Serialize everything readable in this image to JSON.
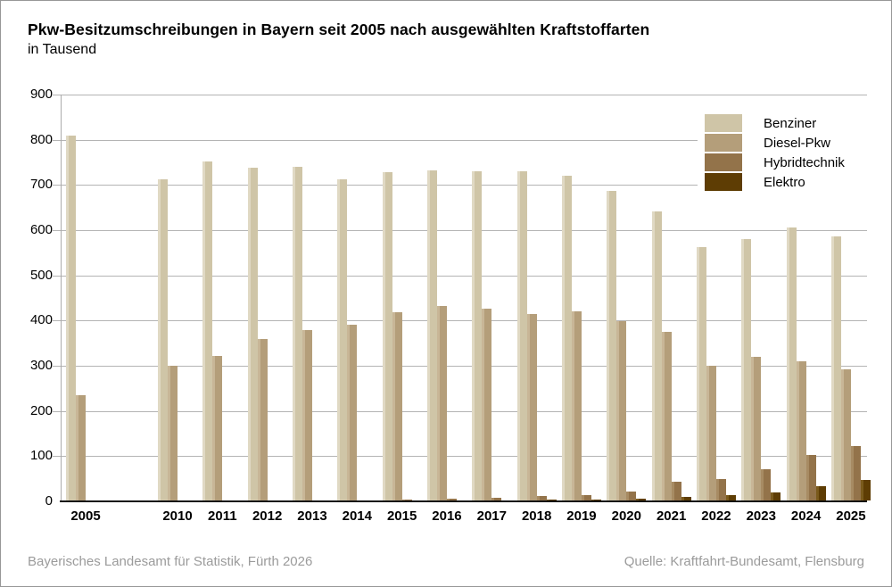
{
  "header": {
    "title": "Pkw-Besitzumschreibungen in Bayern seit 2005 nach ausgewählten Kraftstoffarten",
    "subtitle": "in Tausend"
  },
  "footer": {
    "left": "Bayerisches Landesamt für Statistik, Fürth 2026",
    "right": "Quelle: Kraftfahrt-Bundesamt, Flensburg"
  },
  "colors": {
    "benziner": "#cfc5a7",
    "benziner_highlight": "#e0d9c4",
    "diesel": "#b49e7a",
    "diesel_highlight": "#c8b697",
    "hybrid": "#93734a",
    "hybrid_highlight": "#a78b63",
    "elektro": "#5e3d04",
    "elektro_highlight": "#7a5a1c",
    "gridline": "#b4b4b4",
    "axis": "#111111",
    "footer_text": "#9b9b9b"
  },
  "chart_data": {
    "type": "bar",
    "title": "Pkw-Besitzumschreibungen in Bayern seit 2005 nach ausgewählten Kraftstoffarten",
    "unit_label": "in Tausend",
    "xlabel": "",
    "ylabel": "in Tausend",
    "ylim": [
      0,
      900
    ],
    "ytick_step": 100,
    "grid": true,
    "legend_position": "top-right",
    "categories": [
      2005,
      2010,
      2011,
      2012,
      2013,
      2014,
      2015,
      2016,
      2017,
      2018,
      2019,
      2020,
      2021,
      2022,
      2023,
      2024,
      2025
    ],
    "series": [
      {
        "name": "Benziner",
        "key": "benziner",
        "color": "#cfc5a7",
        "highlight": "#e0d9c4",
        "values": [
          808,
          710,
          750,
          736,
          738,
          711,
          727,
          731,
          729,
          728,
          719,
          685,
          640,
          560,
          578,
          604,
          585
        ]
      },
      {
        "name": "Diesel-Pkw",
        "key": "diesel",
        "color": "#b49e7a",
        "highlight": "#c8b697",
        "values": [
          232,
          298,
          320,
          357,
          377,
          389,
          417,
          430,
          424,
          413,
          419,
          397,
          374,
          298,
          317,
          308,
          290
        ]
      },
      {
        "name": "Hybridtechnik",
        "key": "hybrid",
        "color": "#93734a",
        "highlight": "#a78b63",
        "values": [
          0,
          0,
          0,
          0,
          0,
          0,
          1,
          3,
          5,
          9,
          12,
          20,
          41,
          47,
          69,
          101,
          121
        ]
      },
      {
        "name": "Elektro",
        "key": "elektro",
        "color": "#5e3d04",
        "highlight": "#7a5a1c",
        "values": [
          0,
          0,
          0,
          0,
          0,
          0,
          0,
          0,
          0,
          1,
          2,
          3,
          8,
          12,
          17,
          32,
          45
        ]
      }
    ]
  }
}
